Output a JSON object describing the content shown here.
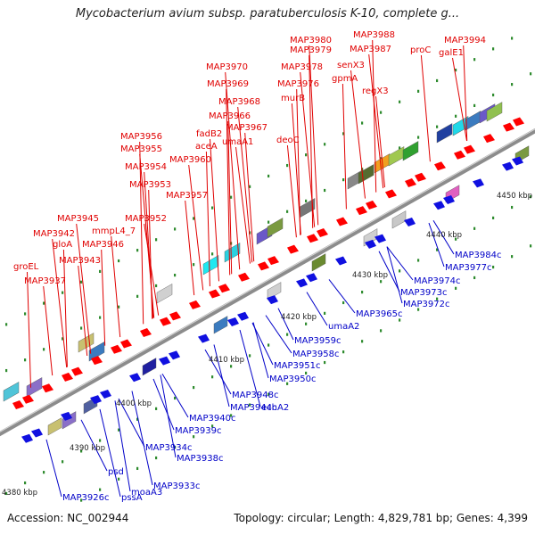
{
  "title": "Mycobacterium avium subsp. paratuberculosis K-10, complete g...",
  "footer": {
    "accession": "Accession: NC_002944",
    "summary": "Topology: circular; Length: 4,829,781 bp; Genes: 4,399"
  },
  "colors": {
    "backbone": "#8c8c8c",
    "forward_label": "#e00000",
    "reverse_label": "#0000c8",
    "forward_arrow": "#ff0000",
    "reverse_arrow": "#1010e0",
    "tick_mark": "#2e8b2e"
  },
  "axis": {
    "unit": "kbp",
    "ticks": [
      "4380 kbp",
      "4390 kbp",
      "4400 kbp",
      "4410 kbp",
      "4420 kbp",
      "4430 kbp",
      "4440 kbp",
      "4450 kbp"
    ]
  },
  "forward_genes": [
    "groEL",
    "MAP3937",
    "MAP3942",
    "gloA",
    "MAP3943",
    "MAP3945",
    "MAP3946",
    "mmpL4_7",
    "MAP3952",
    "MAP3953",
    "MAP3954",
    "MAP3955",
    "MAP3956",
    "MAP3957",
    "MAP3960",
    "aceA",
    "fadB2",
    "umaA1",
    "MAP3966",
    "MAP3967",
    "MAP3968",
    "MAP3969",
    "deoC",
    "MAP3970",
    "MAP3976",
    "murB",
    "MAP3978",
    "MAP3979",
    "MAP3980",
    "senX3",
    "gpmA",
    "regX3",
    "MAP3987",
    "MAP3988",
    "proC",
    "galE1",
    "MAP3994"
  ],
  "reverse_genes": [
    "MAP3926c",
    "pssA",
    "psd",
    "moaA3",
    "MAP3933c",
    "MAP3934c",
    "MAP3938c",
    "MAP3939c",
    "MAP3940c",
    "MAP3944c",
    "echA2",
    "MAP3948c",
    "MAP3950c",
    "MAP3951c",
    "MAP3958c",
    "MAP3959c",
    "umaA2",
    "MAP3965c",
    "MAP3972c",
    "MAP3973c",
    "MAP3974c",
    "MAP3977c",
    "MAP3984c"
  ]
}
